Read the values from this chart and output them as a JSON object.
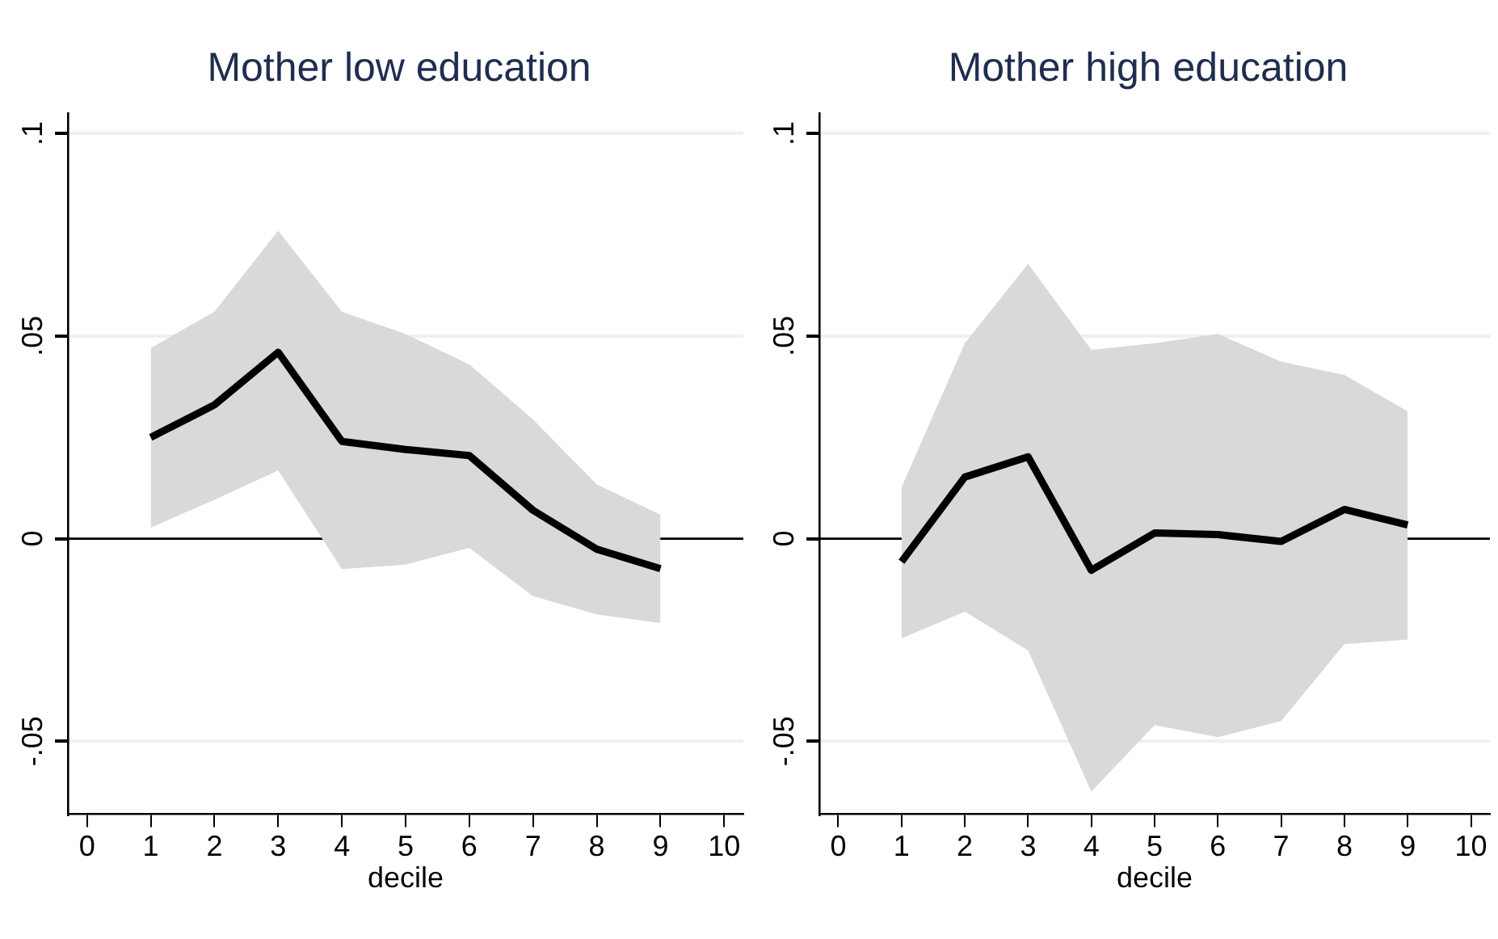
{
  "chart_data": [
    {
      "type": "line",
      "title": "Mother low education",
      "xlabel": "decile",
      "x": [
        1,
        2,
        3,
        4,
        5,
        6,
        7,
        8,
        9
      ],
      "series": [
        {
          "color": "#000000",
          "values": [
            0.025,
            0.033,
            0.046,
            0.024,
            0.022,
            0.0205,
            0.007,
            -0.0026,
            -0.0074
          ],
          "lower": [
            0.0027,
            0.0096,
            0.0168,
            -0.0075,
            -0.0064,
            -0.0023,
            -0.0142,
            -0.0187,
            -0.0208
          ],
          "upper": [
            0.047,
            0.056,
            0.076,
            0.056,
            0.0505,
            0.043,
            0.0294,
            0.0134,
            0.0059
          ]
        }
      ],
      "xlim": [
        -0.3,
        10.3
      ],
      "xticks": [
        0,
        1,
        2,
        3,
        4,
        5,
        6,
        7,
        8,
        9,
        10
      ],
      "ylim": [
        -0.068,
        0.105
      ],
      "yticks": [
        {
          "value": -0.05,
          "label": "-.05"
        },
        0,
        {
          "value": 0.05,
          "label": ".05"
        },
        {
          "value": 0.1,
          "label": ".1"
        }
      ],
      "ref_lines": [
        {
          "axis": "y",
          "value": 0,
          "color": "#000000"
        }
      ],
      "grid": "y",
      "legend": false,
      "marker": "none",
      "line_style": "solid"
    },
    {
      "type": "line",
      "title": "Mother high education",
      "xlabel": "decile",
      "x": [
        1,
        2,
        3,
        4,
        5,
        6,
        7,
        8,
        9
      ],
      "series": [
        {
          "color": "#000000",
          "values": [
            -0.0057,
            0.0152,
            0.0202,
            -0.0078,
            0.0014,
            0.001,
            -0.0007,
            0.0072,
            0.0034
          ],
          "lower": [
            -0.0246,
            -0.018,
            -0.0276,
            -0.0624,
            -0.046,
            -0.049,
            -0.045,
            -0.026,
            -0.0249
          ],
          "upper": [
            0.0127,
            0.0482,
            0.0678,
            0.0466,
            0.0482,
            0.0505,
            0.0437,
            0.0404,
            0.0314
          ]
        }
      ],
      "xlim": [
        -0.3,
        10.3
      ],
      "xticks": [
        0,
        1,
        2,
        3,
        4,
        5,
        6,
        7,
        8,
        9,
        10
      ],
      "ylim": [
        -0.068,
        0.105
      ],
      "yticks": [
        {
          "value": -0.05,
          "label": "-.05"
        },
        0,
        {
          "value": 0.05,
          "label": ".05"
        },
        {
          "value": 0.1,
          "label": ".1"
        }
      ],
      "ref_lines": [
        {
          "axis": "y",
          "value": 0,
          "color": "#000000"
        }
      ],
      "grid": "y",
      "legend": false,
      "marker": "none",
      "line_style": "solid"
    }
  ]
}
